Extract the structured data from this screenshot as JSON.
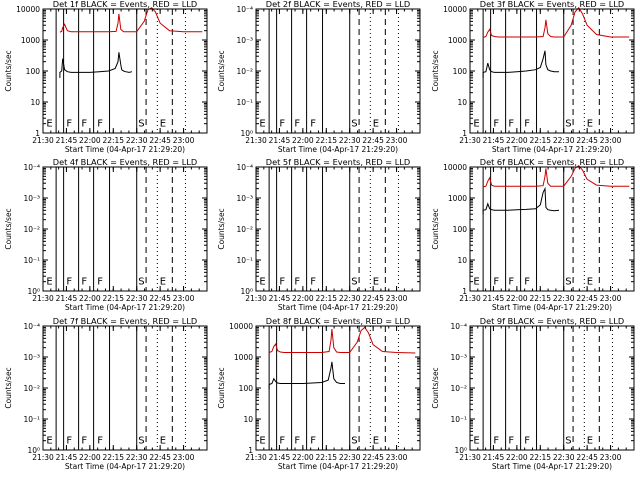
{
  "chart_data": [
    {
      "type": "line",
      "title": "Det 1f BLACK = Events, RED = LLD",
      "ylabel": "Counts/sec",
      "xlabel": "Start Time (04-Apr-17 21:29:20)",
      "xlim": [
        21.5,
        23.25
      ],
      "ylim": [
        1,
        10000
      ],
      "yscale": "log",
      "yticklabels": [
        "1",
        "10",
        "100",
        "1000",
        "10000"
      ],
      "xticks": [
        "21:30",
        "21:45",
        "22:00",
        "22:15",
        "22:30",
        "22:45",
        "23:00"
      ],
      "markers": [
        "E",
        "F",
        "F",
        "F",
        "S",
        "E"
      ],
      "has_data": true,
      "series": [
        {
          "name": "Events",
          "color": "#000000",
          "x": [
            21.68,
            21.68,
            21.7,
            21.71,
            21.73,
            21.76,
            21.8,
            21.9,
            22.0,
            22.1,
            22.2,
            22.27,
            22.3,
            22.31,
            22.33,
            22.34,
            22.36,
            22.38,
            22.42,
            22.45
          ],
          "y": [
            60,
            90,
            100,
            250,
            110,
            95,
            90,
            90,
            90,
            95,
            100,
            120,
            200,
            400,
            160,
            110,
            100,
            95,
            90,
            95
          ]
        },
        {
          "name": "LLD",
          "color": "#cc0000",
          "x": [
            21.68,
            21.7,
            21.71,
            21.73,
            21.76,
            21.8,
            21.9,
            22.0,
            22.1,
            22.2,
            22.28,
            22.3,
            22.31,
            22.33,
            22.36,
            22.4,
            22.5,
            22.58,
            22.62,
            22.66,
            22.7,
            22.75,
            22.85,
            23.0,
            23.2
          ],
          "y": [
            1800,
            1900,
            2500,
            3200,
            2000,
            1850,
            1850,
            1850,
            1850,
            1850,
            1900,
            3500,
            7000,
            2200,
            1850,
            1850,
            1850,
            4000,
            9500,
            11000,
            8000,
            3500,
            2000,
            1850,
            1850
          ]
        }
      ]
    },
    {
      "type": "line",
      "title": "Det 2f BLACK = Events, RED = LLD",
      "ylabel": "Counts/sec",
      "xlabel": "Start Time (04-Apr-17 21:29:20)",
      "xlim": [
        21.5,
        23.25
      ],
      "ylim": [
        1,
        10000
      ],
      "yscale": "log",
      "yticklabels": [
        "10⁰",
        "10⁻¹",
        "10⁻²",
        "10⁻³",
        "10⁻⁴"
      ],
      "xticks": [
        "21:30",
        "21:45",
        "22:00",
        "22:15",
        "22:30",
        "22:45",
        "23:00"
      ],
      "markers": [
        "E",
        "F",
        "F",
        "F",
        "S",
        "E"
      ],
      "has_data": false,
      "series": []
    },
    {
      "type": "line",
      "title": "Det 3f BLACK = Events, RED = LLD",
      "ylabel": "Counts/sec",
      "xlabel": "Start Time (04-Apr-17 21:29:20)",
      "xlim": [
        21.5,
        23.25
      ],
      "ylim": [
        1,
        10000
      ],
      "yscale": "log",
      "yticklabels": [
        "1",
        "10",
        "100",
        "1000",
        "10000"
      ],
      "xticks": [
        "21:30",
        "21:45",
        "22:00",
        "22:15",
        "22:30",
        "22:45",
        "23:00"
      ],
      "markers": [
        "E",
        "F",
        "F",
        "F",
        "S",
        "E"
      ],
      "has_data": true,
      "series": [
        {
          "name": "Events",
          "color": "#000000",
          "x": [
            21.64,
            21.64,
            21.67,
            21.69,
            21.71,
            21.73,
            21.76,
            21.8,
            21.9,
            22.0,
            22.1,
            22.2,
            22.25,
            22.28,
            22.3,
            22.31,
            22.33,
            22.36,
            22.4,
            22.45
          ],
          "y": [
            60,
            90,
            95,
            180,
            110,
            95,
            90,
            90,
            90,
            95,
            100,
            110,
            130,
            250,
            450,
            160,
            110,
            100,
            95,
            95
          ]
        },
        {
          "name": "LLD",
          "color": "#cc0000",
          "x": [
            21.64,
            21.67,
            21.69,
            21.71,
            21.73,
            21.76,
            21.8,
            21.9,
            22.0,
            22.1,
            22.2,
            22.28,
            22.3,
            22.31,
            22.33,
            22.36,
            22.4,
            22.5,
            22.58,
            22.62,
            22.66,
            22.7,
            22.75,
            22.85,
            23.0,
            23.2
          ],
          "y": [
            1200,
            1300,
            1800,
            2200,
            1400,
            1300,
            1250,
            1250,
            1250,
            1250,
            1250,
            1300,
            2500,
            4500,
            1600,
            1300,
            1250,
            1250,
            3000,
            8000,
            11000,
            7000,
            3000,
            1500,
            1250,
            1250
          ]
        }
      ]
    },
    {
      "type": "line",
      "title": "Det 4f BLACK = Events, RED = LLD",
      "ylabel": "Counts/sec",
      "xlabel": "Start Time (04-Apr-17 21:29:20)",
      "xlim": [
        21.5,
        23.25
      ],
      "ylim": [
        1,
        10000
      ],
      "yscale": "log",
      "yticklabels": [
        "10⁰",
        "10⁻¹",
        "10⁻²",
        "10⁻³",
        "10⁻⁴"
      ],
      "xticks": [
        "21:30",
        "21:45",
        "22:00",
        "22:15",
        "22:30",
        "22:45",
        "23:00"
      ],
      "markers": [
        "E",
        "F",
        "F",
        "F",
        "S",
        "E"
      ],
      "has_data": false,
      "series": []
    },
    {
      "type": "line",
      "title": "Det 5f BLACK = Events, RED = LLD",
      "ylabel": "Counts/sec",
      "xlabel": "Start Time (04-Apr-17 21:29:20)",
      "xlim": [
        21.5,
        23.25
      ],
      "ylim": [
        1,
        10000
      ],
      "yscale": "log",
      "yticklabels": [
        "10⁰",
        "10⁻¹",
        "10⁻²",
        "10⁻³",
        "10⁻⁴"
      ],
      "xticks": [
        "21:30",
        "21:45",
        "22:00",
        "22:15",
        "22:30",
        "22:45",
        "23:00"
      ],
      "markers": [
        "E",
        "F",
        "F",
        "F",
        "S",
        "E"
      ],
      "has_data": false,
      "series": []
    },
    {
      "type": "line",
      "title": "Det 6f BLACK = Events, RED = LLD",
      "ylabel": "Counts/sec",
      "xlabel": "Start Time (04-Apr-17 21:29:20)",
      "xlim": [
        21.5,
        23.25
      ],
      "ylim": [
        1,
        10000
      ],
      "yscale": "log",
      "yticklabels": [
        "1",
        "10",
        "100",
        "1000",
        "10000"
      ],
      "xticks": [
        "21:30",
        "21:45",
        "22:00",
        "22:15",
        "22:30",
        "22:45",
        "23:00"
      ],
      "markers": [
        "E",
        "F",
        "F",
        "F",
        "S",
        "E"
      ],
      "has_data": true,
      "series": [
        {
          "name": "Events",
          "color": "#000000",
          "x": [
            21.64,
            21.64,
            21.67,
            21.69,
            21.71,
            21.73,
            21.76,
            21.8,
            21.9,
            22.0,
            22.1,
            22.2,
            22.25,
            22.28,
            22.3,
            22.31,
            22.33,
            22.36,
            22.4,
            22.45
          ],
          "y": [
            300,
            400,
            420,
            650,
            450,
            420,
            400,
            400,
            400,
            420,
            430,
            450,
            600,
            1500,
            2000,
            500,
            420,
            400,
            390,
            400
          ]
        },
        {
          "name": "LLD",
          "color": "#cc0000",
          "x": [
            21.64,
            21.67,
            21.69,
            21.71,
            21.73,
            21.76,
            21.8,
            21.9,
            22.0,
            22.1,
            22.2,
            22.28,
            22.3,
            22.31,
            22.33,
            22.36,
            22.4,
            22.5,
            22.58,
            22.62,
            22.66,
            22.7,
            22.75,
            22.85,
            23.0,
            23.2
          ],
          "y": [
            2300,
            2400,
            3500,
            4500,
            2600,
            2400,
            2400,
            2400,
            2400,
            2400,
            2400,
            2500,
            5000,
            9000,
            3000,
            2400,
            2400,
            2400,
            5000,
            9000,
            11000,
            8000,
            4000,
            2600,
            2400,
            2400
          ]
        }
      ]
    },
    {
      "type": "line",
      "title": "Det 7f BLACK = Events, RED = LLD",
      "ylabel": "Counts/sec",
      "xlabel": "Start Time (04-Apr-17 21:29:20)",
      "xlim": [
        21.5,
        23.25
      ],
      "ylim": [
        1,
        10000
      ],
      "yscale": "log",
      "yticklabels": [
        "10⁰",
        "10⁻¹",
        "10⁻²",
        "10⁻³",
        "10⁻⁴"
      ],
      "xticks": [
        "21:30",
        "21:45",
        "22:00",
        "22:15",
        "22:30",
        "22:45",
        "23:00"
      ],
      "markers": [
        "E",
        "F",
        "F",
        "F",
        "S",
        "E"
      ],
      "has_data": false,
      "series": []
    },
    {
      "type": "line",
      "title": "Det 8f BLACK = Events, RED = LLD",
      "ylabel": "Counts/sec",
      "xlabel": "Start Time (04-Apr-17 21:29:20)",
      "xlim": [
        21.5,
        23.25
      ],
      "ylim": [
        1,
        10000
      ],
      "yscale": "log",
      "yticklabels": [
        "1",
        "10",
        "100",
        "1000",
        "10000"
      ],
      "xticks": [
        "21:30",
        "21:45",
        "22:00",
        "22:15",
        "22:30",
        "22:45",
        "23:00"
      ],
      "markers": [
        "E",
        "F",
        "F",
        "F",
        "S",
        "E"
      ],
      "has_data": true,
      "series": [
        {
          "name": "Events",
          "color": "#000000",
          "x": [
            21.64,
            21.64,
            21.67,
            21.69,
            21.71,
            21.73,
            21.76,
            21.8,
            21.9,
            22.0,
            22.1,
            22.2,
            22.27,
            22.3,
            22.31,
            22.33,
            22.36,
            22.4,
            22.45
          ],
          "y": [
            90,
            130,
            140,
            200,
            160,
            145,
            140,
            140,
            140,
            140,
            145,
            150,
            180,
            450,
            700,
            200,
            150,
            140,
            140
          ]
        },
        {
          "name": "LLD",
          "color": "#cc0000",
          "x": [
            21.64,
            21.67,
            21.69,
            21.71,
            21.73,
            21.76,
            21.8,
            21.9,
            22.0,
            22.1,
            22.2,
            22.28,
            22.3,
            22.31,
            22.33,
            22.36,
            22.4,
            22.5,
            22.58,
            22.62,
            22.66,
            22.7,
            22.75,
            22.85,
            23.0,
            23.2
          ],
          "y": [
            1400,
            1500,
            2200,
            2600,
            1600,
            1450,
            1400,
            1400,
            1400,
            1400,
            1400,
            1500,
            3500,
            8000,
            2000,
            1450,
            1400,
            1400,
            3000,
            7000,
            9000,
            6000,
            2500,
            1500,
            1400,
            1350
          ]
        }
      ]
    },
    {
      "type": "line",
      "title": "Det 9f BLACK = Events, RED = LLD",
      "ylabel": "Counts/sec",
      "xlabel": "Start Time (04-Apr-17 21:29:20)",
      "xlim": [
        21.5,
        23.25
      ],
      "ylim": [
        1,
        10000
      ],
      "yscale": "log",
      "yticklabels": [
        "10⁰",
        "10⁻¹",
        "10⁻²",
        "10⁻³",
        "10⁻⁴"
      ],
      "xticks": [
        "21:30",
        "21:45",
        "22:00",
        "22:15",
        "22:30",
        "22:45",
        "23:00"
      ],
      "markers": [
        "E",
        "F",
        "F",
        "F",
        "S",
        "E"
      ],
      "has_data": false,
      "series": []
    }
  ],
  "overlay": {
    "solid_lines_x": [
      21.64,
      21.72,
      21.88,
      22.04,
      22.21,
      22.5
    ],
    "dashed_lines_x": [
      22.6,
      22.88
    ],
    "dotted_lines_x": [
      22.72,
      23.02
    ],
    "marker_x": [
      21.57,
      21.78,
      21.94,
      22.11,
      22.55,
      22.78
    ],
    "marker_y": 1.6
  }
}
